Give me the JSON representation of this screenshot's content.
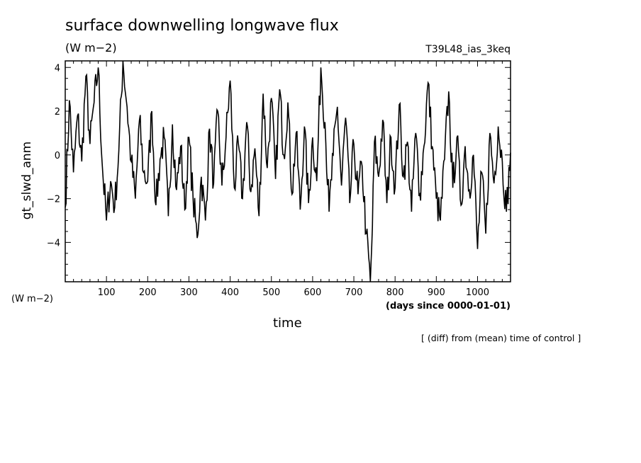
{
  "chart_data": {
    "type": "line",
    "title": "surface downwelling longwave flux",
    "units": "(W m−2)",
    "run_label": "T39L48_ias_3keq",
    "ylabel": "gt_slwd_anm",
    "xlabel": "time",
    "x_units": "(days since 0000-01-01)",
    "units_bottom": "(W m−2)",
    "note": "[ (diff) from (mean) time of control ]",
    "xlim": [
      0,
      1080
    ],
    "ylim": [
      -5.8,
      4.3
    ],
    "x_ticks": [
      100,
      200,
      300,
      400,
      500,
      600,
      700,
      800,
      900,
      1000
    ],
    "x_tick_labels": [
      "100",
      "200",
      "300",
      "400",
      "500",
      "600",
      "700",
      "800",
      "900",
      "1000"
    ],
    "y_ticks": [
      -4,
      -2,
      0,
      2,
      4
    ],
    "y_tick_labels": [
      "−4",
      "−2",
      "0",
      "2",
      "4"
    ],
    "line_color": "#000000",
    "series": [
      {
        "x": [
          0,
          10,
          20,
          30,
          40,
          50,
          60,
          70,
          80,
          90,
          100,
          110,
          120,
          130,
          140,
          150,
          160,
          170,
          180,
          190,
          200,
          210,
          220,
          230,
          240,
          250,
          260,
          270,
          280,
          290,
          300,
          310,
          320,
          330,
          340,
          350,
          360,
          370,
          380,
          390,
          400,
          410,
          420,
          430,
          440,
          450,
          460,
          470,
          480,
          490,
          500,
          510,
          520,
          530,
          540,
          550,
          560,
          570,
          580,
          590,
          600,
          610,
          620,
          630,
          640,
          650,
          660,
          670,
          680,
          690,
          700,
          710,
          720,
          730,
          740,
          745,
          750,
          760,
          770,
          780,
          790,
          800,
          810,
          820,
          830,
          840,
          850,
          860,
          870,
          880,
          890,
          900,
          910,
          920,
          930,
          940,
          950,
          960,
          970,
          980,
          990,
          1000,
          1010,
          1020,
          1030,
          1040,
          1050,
          1060,
          1070,
          1080
        ],
        "y": [
          -2.4,
          2.5,
          -0.8,
          1.8,
          -0.3,
          3.6,
          0.5,
          2.4,
          4.0,
          -0.5,
          -3.0,
          -1.2,
          -2.4,
          0.2,
          4.3,
          2.2,
          -0.3,
          -2.0,
          1.6,
          -0.8,
          -1.2,
          2.0,
          -2.3,
          -0.2,
          0.8,
          -2.8,
          1.4,
          -1.6,
          0.4,
          -2.5,
          0.8,
          -2.0,
          -3.8,
          -1.0,
          -3.0,
          1.2,
          -1.3,
          2.0,
          -1.4,
          0.8,
          3.4,
          -1.5,
          0.5,
          -2.0,
          1.5,
          -1.7,
          0.3,
          -2.8,
          2.8,
          -0.6,
          2.6,
          -1.1,
          3.0,
          0.0,
          2.4,
          -1.8,
          1.0,
          -2.5,
          1.3,
          -2.2,
          0.8,
          -1.2,
          4.0,
          1.5,
          -2.6,
          0.0,
          2.2,
          -1.4,
          1.7,
          -2.2,
          0.5,
          -1.8,
          -0.5,
          -3.6,
          -5.8,
          -3.3,
          0.6,
          -1.0,
          1.6,
          -2.2,
          0.8,
          -1.5,
          2.3,
          -1.0,
          0.6,
          -2.6,
          1.0,
          -1.8,
          0.4,
          3.3,
          0.4,
          -2.0,
          -3.0,
          -0.2,
          2.9,
          -1.5,
          0.8,
          -2.3,
          0.4,
          -1.6,
          0.0,
          -4.3,
          -0.8,
          -3.6,
          1.0,
          -1.3,
          1.3,
          -0.3,
          -2.6,
          0.1
        ]
      }
    ]
  }
}
